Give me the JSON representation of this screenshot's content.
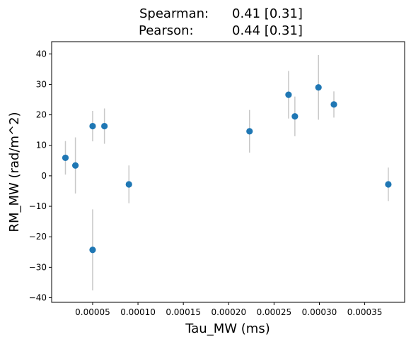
{
  "chart_data": {
    "type": "scatter",
    "title_line1_label": "Spearman:",
    "title_line1_value": "0.41 [0.31]",
    "title_line2_label": "Pearson:",
    "title_line2_value": "0.44 [0.31]",
    "xlabel": "Tau_MW (ms)",
    "ylabel": "RM_MW (rad/m^2)",
    "xlim": [
      4.8e-06,
      0.000394
    ],
    "ylim": [
      -41.5,
      44
    ],
    "xticks": [
      5e-05,
      0.0001,
      0.00015,
      0.0002,
      0.00025,
      0.0003,
      0.00035
    ],
    "xtick_labels": [
      "0.00005",
      "0.00010",
      "0.00015",
      "0.00020",
      "0.00025",
      "0.00030",
      "0.00035"
    ],
    "yticks": [
      -40,
      -30,
      -20,
      -10,
      0,
      10,
      20,
      30,
      40
    ],
    "ytick_labels": [
      "−40",
      "−30",
      "−20",
      "−10",
      "0",
      "10",
      "20",
      "30",
      "40"
    ],
    "marker_color": "#1f77b4",
    "errorbar_color": "#c8c8c8",
    "grid": false,
    "points": [
      {
        "x": 2e-05,
        "y": 5.9,
        "yerr": 5.5
      },
      {
        "x": 3.1e-05,
        "y": 3.4,
        "yerr": 9.2
      },
      {
        "x": 5e-05,
        "y": 16.3,
        "yerr": 5.0
      },
      {
        "x": 5e-05,
        "y": -24.3,
        "yerr": 13.3
      },
      {
        "x": 6.3e-05,
        "y": 16.3,
        "yerr": 5.8
      },
      {
        "x": 9e-05,
        "y": -2.8,
        "yerr": 6.2
      },
      {
        "x": 0.000223,
        "y": 14.6,
        "yerr": 7.0
      },
      {
        "x": 0.000266,
        "y": 26.6,
        "yerr": 7.8
      },
      {
        "x": 0.000273,
        "y": 19.5,
        "yerr": 6.5
      },
      {
        "x": 0.000299,
        "y": 29.0,
        "yerr": 10.6
      },
      {
        "x": 0.000316,
        "y": 23.4,
        "yerr": 4.3
      },
      {
        "x": 0.000376,
        "y": -2.8,
        "yerr": 5.5
      }
    ]
  }
}
